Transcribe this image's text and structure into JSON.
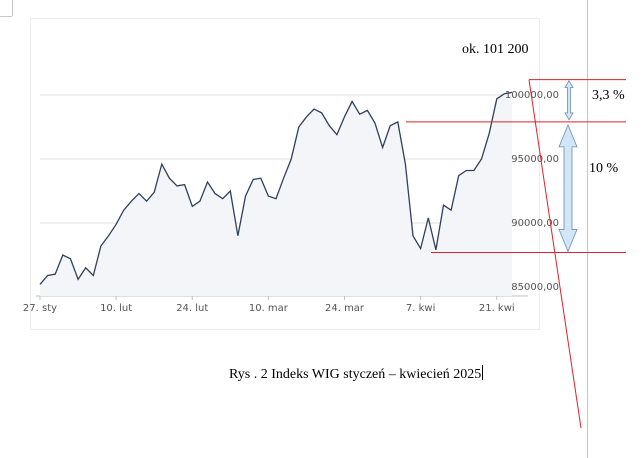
{
  "colors": {
    "series_line": "#2f3f5c",
    "series_fill": "#f3f5f9",
    "grid": "#e1e1e1",
    "annotation_line": "#d9232e",
    "arrow_fill": "#d2e6f7",
    "arrow_stroke": "#6c8fb0",
    "tick_text": "#555555"
  },
  "annotations": {
    "peak_label": "ok. 101 200",
    "upper_gap_label": "3,3 %",
    "lower_gap_label": "10 %"
  },
  "caption": "Rys . 2 Indeks WIG styczeń – kwiecień 2025",
  "chart_data": {
    "type": "area",
    "title": "",
    "xlabel": "",
    "ylabel": "",
    "ylim": [
      84000,
      103500
    ],
    "y_ticks": [
      85000,
      90000,
      95000,
      100000
    ],
    "y_tick_labels": [
      "85000,00",
      "90000,00",
      "95000,00",
      "100000,00"
    ],
    "y_axis_position": "right",
    "grid": "horizontal",
    "x_tick_labels": [
      "27. sty",
      "10. lut",
      "24. lut",
      "10. mar",
      "24. mar",
      "7. kwi",
      "21. kwi"
    ],
    "x_tick_index": [
      0,
      10,
      20,
      30,
      40,
      50,
      60
    ],
    "series": [
      {
        "values": [
          85200,
          85900,
          86000,
          87500,
          87200,
          85600,
          86500,
          85900,
          88200,
          89000,
          89900,
          91000,
          91700,
          92300,
          91700,
          92400,
          94600,
          93500,
          92900,
          93000,
          91300,
          91700,
          93200,
          92300,
          91900,
          92500,
          89000,
          92100,
          93400,
          93500,
          92100,
          91900,
          93500,
          95000,
          97500,
          98300,
          98900,
          98600,
          97600,
          96900,
          98300,
          99500,
          98500,
          98800,
          97800,
          95900,
          97600,
          97900,
          94600,
          89000,
          88000,
          90400,
          87900,
          91400,
          91000,
          93700,
          94100,
          94100,
          95000,
          97000,
          99700,
          100100,
          100200
        ]
      }
    ],
    "reference_lines": [
      101200,
      97900,
      87700
    ]
  }
}
